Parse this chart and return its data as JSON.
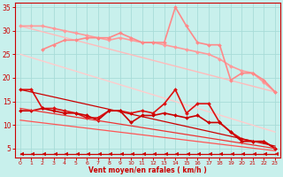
{
  "bg_color": "#c8f0ec",
  "grid_color": "#a8dcd8",
  "xlabel": "Vent moyen/en rafales ( km/h )",
  "xlabel_color": "#cc0000",
  "tick_color": "#cc0000",
  "xlim": [
    -0.5,
    23.5
  ],
  "ylim": [
    3,
    36
  ],
  "yticks": [
    5,
    10,
    15,
    20,
    25,
    30,
    35
  ],
  "xticks": [
    0,
    1,
    2,
    3,
    4,
    5,
    6,
    7,
    8,
    9,
    10,
    11,
    12,
    13,
    14,
    15,
    16,
    17,
    18,
    19,
    20,
    21,
    22,
    23
  ],
  "series": [
    {
      "name": "light_pink_smooth_upper_diag",
      "color": "#ffbbbb",
      "lw": 1.0,
      "marker": null,
      "ms": 0,
      "x": [
        0,
        23
      ],
      "y": [
        31.0,
        17.0
      ]
    },
    {
      "name": "lighter_pink_lower_diag",
      "color": "#ffcccc",
      "lw": 1.0,
      "marker": null,
      "ms": 0,
      "x": [
        0,
        23
      ],
      "y": [
        25.0,
        8.5
      ]
    },
    {
      "name": "line_pink_wavy_upper",
      "color": "#ff9999",
      "lw": 1.2,
      "marker": "D",
      "ms": 2.0,
      "x": [
        0,
        1,
        2,
        3,
        4,
        5,
        6,
        7,
        8,
        9,
        10,
        11,
        12,
        13,
        14,
        15,
        16,
        17,
        18,
        19,
        20,
        21,
        22,
        23
      ],
      "y": [
        31.0,
        31.0,
        31.0,
        30.5,
        30.0,
        29.5,
        29.0,
        28.5,
        28.0,
        28.5,
        28.0,
        27.5,
        27.5,
        27.0,
        26.5,
        26.0,
        25.5,
        25.0,
        24.0,
        22.5,
        21.5,
        21.0,
        19.0,
        17.0
      ]
    },
    {
      "name": "line_pink_wavy_middle",
      "color": "#ff8888",
      "lw": 1.2,
      "marker": "D",
      "ms": 2.0,
      "x": [
        2,
        3,
        4,
        5,
        6,
        7,
        8,
        9,
        10,
        11,
        12,
        13,
        14,
        15,
        16,
        17,
        18,
        19,
        20,
        21,
        22,
        23
      ],
      "y": [
        26.0,
        27.0,
        28.0,
        28.0,
        28.5,
        28.5,
        28.5,
        29.5,
        28.5,
        27.5,
        27.5,
        27.5,
        35.0,
        31.0,
        27.5,
        27.0,
        27.0,
        19.5,
        21.0,
        21.0,
        19.5,
        17.0
      ]
    },
    {
      "name": "line_red_upper",
      "color": "#dd1111",
      "lw": 1.2,
      "marker": "D",
      "ms": 2.0,
      "x": [
        0,
        1,
        2,
        3,
        4,
        5,
        6,
        7,
        8,
        9,
        10,
        11,
        12,
        13,
        14,
        15,
        16,
        17,
        18,
        19,
        20,
        21,
        22,
        23
      ],
      "y": [
        17.5,
        17.5,
        13.5,
        13.5,
        13.0,
        12.5,
        11.5,
        11.5,
        13.0,
        13.0,
        12.5,
        13.0,
        12.5,
        14.5,
        17.5,
        12.5,
        14.5,
        14.5,
        10.5,
        8.5,
        7.0,
        6.5,
        6.5,
        5.0
      ]
    },
    {
      "name": "line_red_lower",
      "color": "#cc0000",
      "lw": 1.2,
      "marker": "D",
      "ms": 2.0,
      "x": [
        0,
        1,
        2,
        3,
        4,
        5,
        6,
        7,
        8,
        9,
        10,
        11,
        12,
        13,
        14,
        15,
        16,
        17,
        18,
        19,
        20,
        21,
        22,
        23
      ],
      "y": [
        13.0,
        13.0,
        13.5,
        13.0,
        12.5,
        12.5,
        12.0,
        11.0,
        13.0,
        13.0,
        10.5,
        12.0,
        12.0,
        12.5,
        12.0,
        11.5,
        12.0,
        10.5,
        10.5,
        8.5,
        6.5,
        6.5,
        6.5,
        5.0
      ]
    },
    {
      "name": "red_diag1",
      "color": "#cc0000",
      "lw": 0.9,
      "marker": null,
      "ms": 0,
      "x": [
        0,
        23
      ],
      "y": [
        17.5,
        5.5
      ]
    },
    {
      "name": "red_diag2",
      "color": "#ee3333",
      "lw": 0.9,
      "marker": null,
      "ms": 0,
      "x": [
        0,
        23
      ],
      "y": [
        13.5,
        5.0
      ]
    },
    {
      "name": "red_diag3",
      "color": "#ff5555",
      "lw": 0.9,
      "marker": null,
      "ms": 0,
      "x": [
        0,
        23
      ],
      "y": [
        11.0,
        4.5
      ]
    },
    {
      "name": "arrow_line_bottom",
      "color": "#cc0000",
      "lw": 0.9,
      "marker": 4,
      "ms": 3.5,
      "x": [
        0,
        1,
        2,
        3,
        4,
        5,
        6,
        7,
        8,
        9,
        10,
        11,
        12,
        13,
        14,
        15,
        16,
        17,
        18,
        19,
        20,
        21,
        22,
        23
      ],
      "y": [
        3.8,
        3.8,
        3.8,
        3.8,
        3.8,
        3.8,
        3.8,
        3.8,
        3.8,
        3.8,
        3.8,
        3.8,
        3.8,
        3.8,
        3.8,
        3.8,
        3.8,
        3.8,
        3.8,
        3.8,
        3.8,
        3.8,
        3.8,
        3.8
      ]
    }
  ]
}
